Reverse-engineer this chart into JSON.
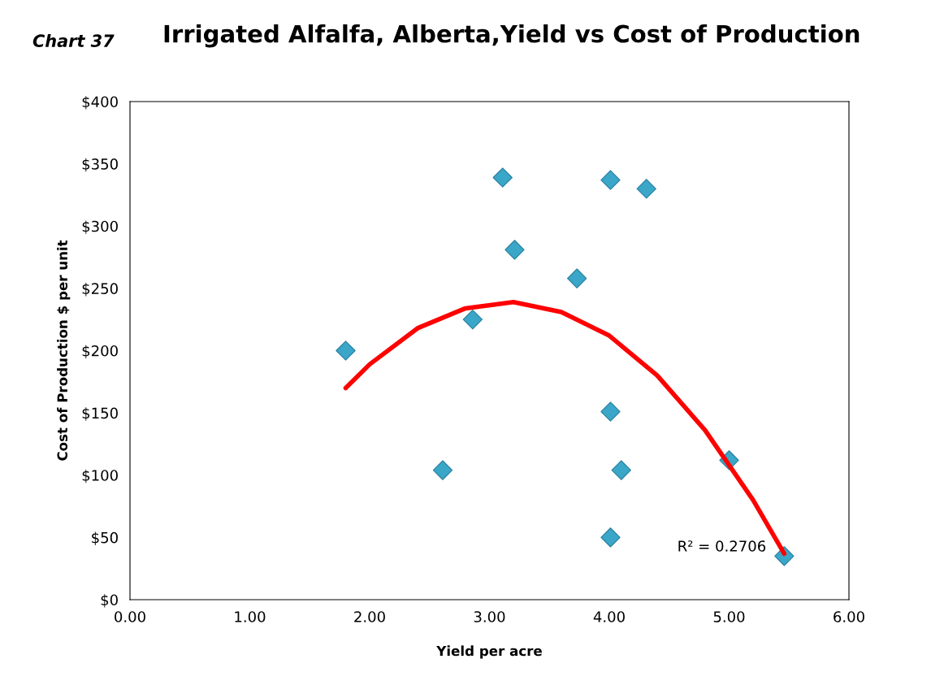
{
  "chart_data": {
    "type": "scatter",
    "title": "Irrigated Alfalfa, Alberta,Yield vs Cost of Production",
    "xlabel": "Yield per acre",
    "ylabel": "Cost of Production $ per unit",
    "annotations": [
      "Chart 37",
      "R² = 0.2706"
    ],
    "marker": "diamond",
    "grid": false,
    "legend": false,
    "xlim": [
      0,
      6
    ],
    "xticks": [
      {
        "value": 0,
        "label": "0.00"
      },
      {
        "value": 1,
        "label": "1.00"
      },
      {
        "value": 2,
        "label": "2.00"
      },
      {
        "value": 3,
        "label": "3.00"
      },
      {
        "value": 4,
        "label": "4.00"
      },
      {
        "value": 5,
        "label": "5.00"
      },
      {
        "value": 6,
        "label": "6.00"
      }
    ],
    "ylim": [
      0,
      400
    ],
    "yticks": [
      {
        "value": 0,
        "label": "$0"
      },
      {
        "value": 50,
        "label": "$50"
      },
      {
        "value": 100,
        "label": "$100"
      },
      {
        "value": 150,
        "label": "$150"
      },
      {
        "value": 200,
        "label": "$200"
      },
      {
        "value": 250,
        "label": "$250"
      },
      {
        "value": 300,
        "label": "$300"
      },
      {
        "value": 350,
        "label": "$350"
      },
      {
        "value": 400,
        "label": "$400"
      }
    ],
    "series": [
      {
        "color": "#3aa6c8",
        "x": [
          1.8,
          2.61,
          2.86,
          3.11,
          3.21,
          3.73,
          4.01,
          4.31,
          4.01,
          4.1,
          4.01,
          5.0,
          5.46
        ],
        "values": [
          200,
          104,
          225,
          339,
          281,
          258,
          337,
          330,
          151,
          104,
          50,
          112,
          35
        ]
      },
      {
        "type": "line",
        "color": "#ff0000",
        "marker": "none",
        "x": [
          1.8,
          2.0,
          2.4,
          2.8,
          3.2,
          3.6,
          4.0,
          4.4,
          4.8,
          5.2,
          5.46
        ],
        "values": [
          170,
          189,
          218,
          234,
          239,
          231,
          212,
          180,
          136,
          80,
          37
        ]
      }
    ]
  }
}
